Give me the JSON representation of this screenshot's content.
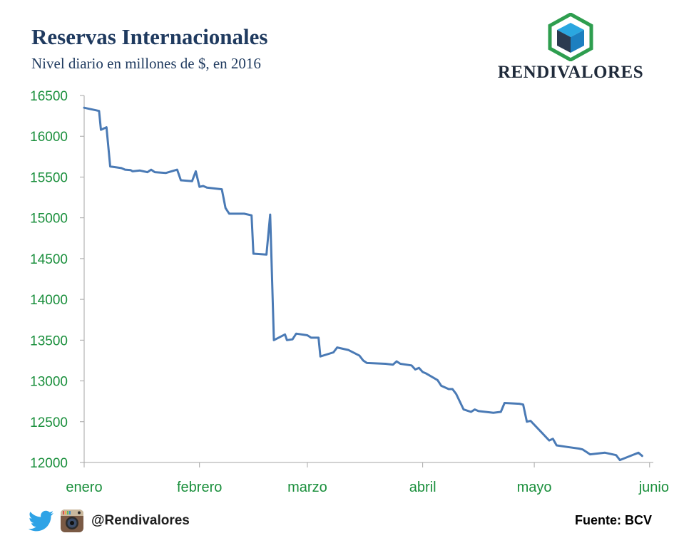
{
  "header": {
    "title": "Reservas Internacionales",
    "subtitle": "Nivel diario en millones de $, en 2016"
  },
  "brand": {
    "name": "RENDIVALORES",
    "logo_icon": "hexagon-cube-icon",
    "colors": {
      "hexagon": "#2e9e4f",
      "cube_top": "#2aa7e0",
      "cube_left": "#2b3a4f",
      "cube_right": "#1c7fc0"
    }
  },
  "footer": {
    "twitter_icon": "twitter-bird-icon",
    "instagram_icon": "instagram-camera-icon",
    "handle": "@Rendivalores",
    "source": "Fuente: BCV"
  },
  "colors": {
    "line": "#4a7ab5",
    "tick_label": "#1a8f3c",
    "axis": "#a6a6a6"
  },
  "chart_data": {
    "type": "line",
    "title": "Reservas Internacionales",
    "subtitle": "Nivel diario en millones de $, en 2016",
    "xlabel": "",
    "ylabel": "",
    "ylim": [
      12000,
      16500
    ],
    "yticks": [
      12000,
      12500,
      13000,
      13500,
      14000,
      14500,
      15000,
      15500,
      16000,
      16500
    ],
    "month_labels": [
      "enero",
      "febrero",
      "marzo",
      "abril",
      "mayo",
      "junio"
    ],
    "x_unit": "day of 2016",
    "month_starts": [
      1,
      32,
      61,
      92,
      122,
      153
    ],
    "grid": false,
    "legend": "none",
    "series": [
      {
        "points": [
          [
            1,
            16350
          ],
          [
            5,
            16310
          ],
          [
            5.5,
            16080
          ],
          [
            7,
            16110
          ],
          [
            8,
            15630
          ],
          [
            11,
            15610
          ],
          [
            12,
            15590
          ],
          [
            13.5,
            15585
          ],
          [
            14,
            15570
          ],
          [
            16,
            15580
          ],
          [
            18,
            15560
          ],
          [
            19,
            15590
          ],
          [
            20,
            15560
          ],
          [
            23,
            15550
          ],
          [
            26,
            15590
          ],
          [
            27,
            15460
          ],
          [
            30,
            15450
          ],
          [
            31,
            15570
          ],
          [
            32,
            15380
          ],
          [
            33,
            15390
          ],
          [
            34,
            15370
          ],
          [
            38,
            15350
          ],
          [
            39,
            15120
          ],
          [
            40,
            15050
          ],
          [
            44,
            15050
          ],
          [
            46,
            15030
          ],
          [
            46.5,
            14560
          ],
          [
            50,
            14550
          ],
          [
            51,
            15040
          ],
          [
            52,
            13500
          ],
          [
            55,
            13570
          ],
          [
            55.5,
            13500
          ],
          [
            57,
            13510
          ],
          [
            58,
            13580
          ],
          [
            61,
            13560
          ],
          [
            62,
            13530
          ],
          [
            64,
            13530
          ],
          [
            64.5,
            13300
          ],
          [
            68,
            13350
          ],
          [
            69,
            13410
          ],
          [
            72,
            13380
          ],
          [
            75,
            13310
          ],
          [
            76,
            13250
          ],
          [
            77,
            13220
          ],
          [
            82,
            13210
          ],
          [
            84,
            13200
          ],
          [
            85,
            13240
          ],
          [
            86,
            13210
          ],
          [
            89,
            13190
          ],
          [
            90,
            13140
          ],
          [
            91,
            13160
          ],
          [
            92,
            13110
          ],
          [
            93,
            13090
          ],
          [
            96,
            13010
          ],
          [
            97,
            12940
          ],
          [
            99,
            12900
          ],
          [
            100,
            12900
          ],
          [
            101,
            12840
          ],
          [
            103,
            12650
          ],
          [
            105,
            12620
          ],
          [
            106,
            12650
          ],
          [
            107,
            12630
          ],
          [
            111,
            12610
          ],
          [
            113,
            12620
          ],
          [
            114,
            12730
          ],
          [
            118,
            12720
          ],
          [
            119,
            12710
          ],
          [
            120,
            12500
          ],
          [
            121,
            12510
          ],
          [
            126,
            12270
          ],
          [
            127,
            12290
          ],
          [
            128,
            12210
          ],
          [
            131,
            12190
          ],
          [
            134,
            12170
          ],
          [
            135,
            12160
          ],
          [
            136,
            12130
          ],
          [
            137,
            12100
          ],
          [
            141,
            12120
          ],
          [
            144,
            12090
          ],
          [
            145,
            12030
          ],
          [
            150,
            12120
          ],
          [
            151,
            12080
          ]
        ]
      }
    ]
  }
}
